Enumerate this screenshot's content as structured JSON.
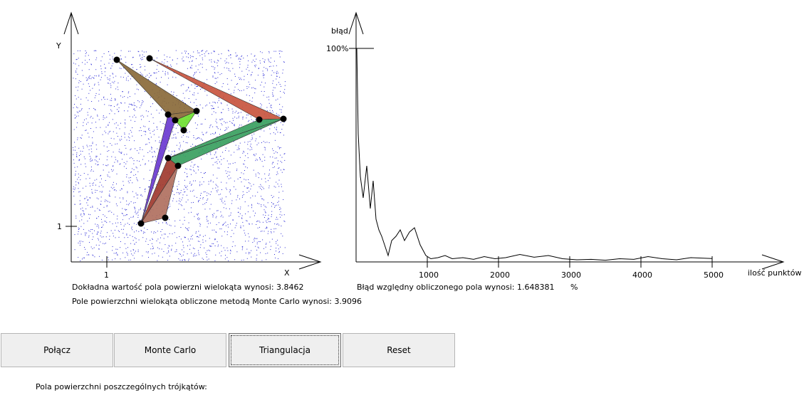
{
  "left_plot": {
    "x_axis_label": "X",
    "y_axis_label": "Y",
    "x_tick_label": "1",
    "y_tick_label": "1",
    "dot_color": "#2b2bd6",
    "vertex_color": "#000000",
    "triangle_colors": [
      "#8a6a3a",
      "#c8553f",
      "#3aa060",
      "#6a3ad0",
      "#a0392e",
      "#c87060",
      "#6ee030",
      "#b07060"
    ]
  },
  "error_plot": {
    "y_axis_label": "błąd",
    "y_tick_label": "100%",
    "x_axis_label": "ilość punktów",
    "x_ticks": [
      "1000",
      "2000",
      "3000",
      "4000",
      "5000"
    ]
  },
  "chart_data": {
    "type": "line",
    "title": "",
    "xlabel": "ilość punktów",
    "ylabel": "błąd",
    "xlim": [
      0,
      5000
    ],
    "ylim": [
      0,
      100
    ],
    "series": [
      {
        "x": [
          10,
          30,
          60,
          100,
          150,
          200,
          240,
          280,
          320,
          360,
          400,
          450,
          500,
          560,
          620,
          680,
          750,
          820,
          900,
          980,
          1050,
          1150,
          1250,
          1350,
          1500,
          1650,
          1800,
          1950,
          2100,
          2300,
          2500,
          2700,
          2900,
          3100,
          3300,
          3500,
          3700,
          3900,
          4100,
          4300,
          4500,
          4700,
          5000
        ],
        "values": [
          100,
          60,
          40,
          30,
          45,
          25,
          38,
          20,
          15,
          12,
          8,
          3,
          10,
          12,
          15,
          10,
          14,
          16,
          8,
          3,
          1.5,
          2,
          3,
          1.5,
          2,
          1.2,
          2.5,
          1.5,
          2,
          3.5,
          2.2,
          3,
          1.5,
          1,
          1.2,
          0.8,
          1.5,
          1.2,
          2.5,
          1.5,
          1,
          2,
          1.6
        ]
      }
    ]
  },
  "info": {
    "exact_area": "Dokładna wartość pola powierzni wielokąta wynosi: 3.8462",
    "mc_area": "Pole powierzchni wielokąta obliczone metodą Monte Carlo wynosi: 3.9096",
    "relative_error": "Błąd względny obliczonego pola wynosi: 1.648381",
    "percent": "%"
  },
  "buttons": {
    "connect": "Połącz",
    "monte_carlo": "Monte Carlo",
    "triangulation": "Triangulacja",
    "reset": "Reset"
  },
  "triangles_heading": "Pola powierzchni poszczególnych trójkątów:"
}
